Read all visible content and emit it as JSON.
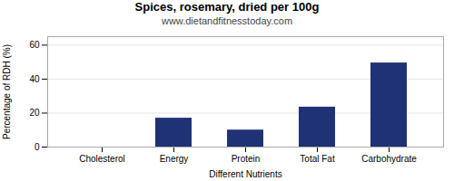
{
  "chart_data": {
    "type": "bar",
    "title": "Spices, rosemary, dried per 100g",
    "subtitle": "www.dietandfitnesstoday.com",
    "xlabel": "Different Nutrients",
    "ylabel": "Percentage of RDH (%)",
    "categories": [
      "Cholesterol",
      "Energy",
      "Protein",
      "Total Fat",
      "Carbohydrate"
    ],
    "values": [
      0,
      17,
      10,
      23.5,
      49.5
    ],
    "color": "#1f3275",
    "ylim": [
      0,
      65
    ],
    "yticks": [
      0,
      20,
      40,
      60
    ],
    "grid": true
  }
}
